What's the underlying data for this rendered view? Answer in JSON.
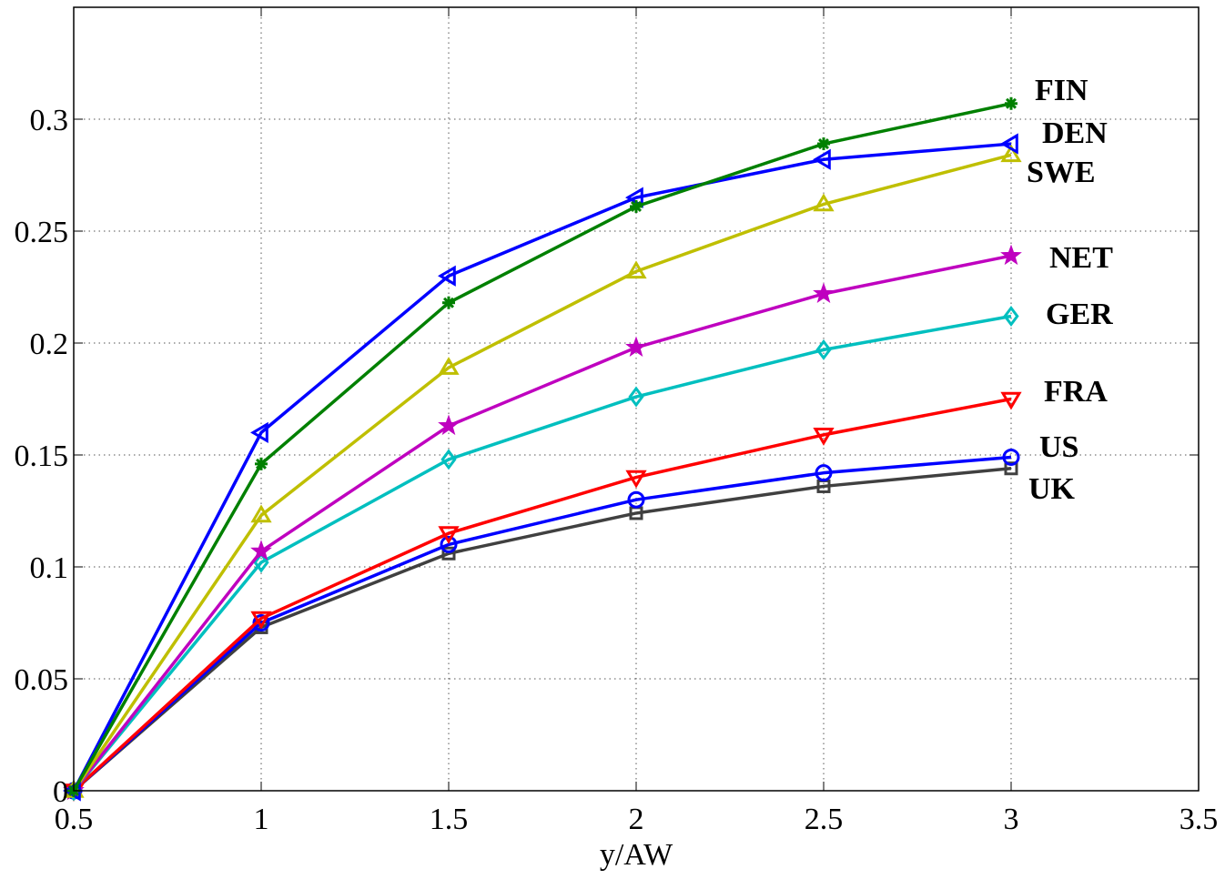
{
  "chart_data": {
    "type": "line",
    "title": "",
    "xlabel": "y/AW",
    "ylabel": "",
    "xlim": [
      0.5,
      3.5
    ],
    "ylim": [
      0,
      0.35
    ],
    "grid": true,
    "xticks": [
      "0.5",
      "1",
      "1.5",
      "2",
      "2.5",
      "3",
      "3.5"
    ],
    "yticks": [
      "0",
      "0.05",
      "0.1",
      "0.15",
      "0.2",
      "0.25",
      "0.3"
    ],
    "x": [
      0.5,
      1,
      1.5,
      2,
      2.5,
      3
    ],
    "series": [
      {
        "name": "FIN",
        "color": "#008000",
        "marker": "asterisk",
        "values": [
          0,
          0.146,
          0.218,
          0.261,
          0.289,
          0.307
        ]
      },
      {
        "name": "DEN",
        "color": "#0000ff",
        "marker": "triangle-left",
        "values": [
          0,
          0.16,
          0.23,
          0.265,
          0.282,
          0.289
        ]
      },
      {
        "name": "SWE",
        "color": "#bfbf00",
        "marker": "triangle-up",
        "values": [
          0,
          0.123,
          0.189,
          0.232,
          0.262,
          0.284
        ]
      },
      {
        "name": "NET",
        "color": "#bf00bf",
        "marker": "pentagram",
        "values": [
          0,
          0.107,
          0.163,
          0.198,
          0.222,
          0.239
        ]
      },
      {
        "name": "GER",
        "color": "#00bfbf",
        "marker": "diamond",
        "values": [
          0,
          0.102,
          0.148,
          0.176,
          0.197,
          0.212
        ]
      },
      {
        "name": "FRA",
        "color": "#ff0000",
        "marker": "triangle-down",
        "values": [
          0,
          0.077,
          0.115,
          0.14,
          0.159,
          0.175
        ]
      },
      {
        "name": "US",
        "color": "#0000ff",
        "marker": "circle",
        "values": [
          0,
          0.075,
          0.11,
          0.13,
          0.142,
          0.149
        ]
      },
      {
        "name": "UK",
        "color": "#404040",
        "marker": "square",
        "values": [
          0,
          0.073,
          0.106,
          0.124,
          0.136,
          0.144
        ]
      }
    ]
  }
}
